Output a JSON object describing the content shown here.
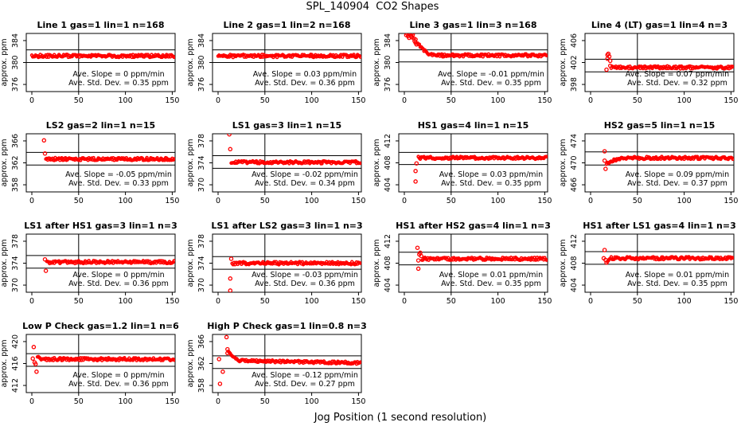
{
  "figure": {
    "title": "SPL_140904  CO2 Shapes",
    "x_axis_label": "Jog Position (1 second resolution)",
    "y_axis_label": "approx. ppm"
  },
  "colors": {
    "point": "#ff0000",
    "axis": "#000000",
    "background": "#ffffff"
  },
  "chart_data": [
    {
      "type": "scatter",
      "name": "line-1",
      "title": "Line 1 gas=1 lin=1 n=168",
      "ylabel": "approx. ppm",
      "yticks": [
        376,
        380,
        384
      ],
      "xticks": [
        0,
        50,
        100,
        150
      ],
      "vline_x": 50,
      "hlines": [
        382.3,
        380.0
      ],
      "annotation": [
        "Ave. Slope =  0  ppm/min",
        "Ave. Std. Dev. =  0.35  ppm"
      ],
      "slope_ppm_per_min": 0,
      "std_dev_ppm": 0.35,
      "series": {
        "baseline": 381.2,
        "noise": 0.26,
        "x_start": 0,
        "x_end": 152,
        "outliers": []
      }
    },
    {
      "type": "scatter",
      "name": "line-2",
      "title": "Line 2 gas=1 lin=2 n=168",
      "ylabel": "approx. ppm",
      "yticks": [
        376,
        380,
        384
      ],
      "xticks": [
        0,
        50,
        100,
        150
      ],
      "vline_x": 50,
      "hlines": [
        382.3,
        380.0
      ],
      "annotation": [
        "Ave. Slope =  0.03  ppm/min",
        "Ave. Std. Dev. =  0.36  ppm"
      ],
      "slope_ppm_per_min": 0.03,
      "std_dev_ppm": 0.36,
      "series": {
        "baseline": 381.2,
        "noise": 0.27,
        "x_start": 0,
        "x_end": 152,
        "outliers": []
      }
    },
    {
      "type": "scatter",
      "name": "line-3",
      "title": "Line 3 gas=1 lin=3 n=168",
      "ylabel": "approx. ppm",
      "yticks": [
        376,
        380,
        384
      ],
      "xticks": [
        0,
        50,
        100,
        150
      ],
      "vline_x": 50,
      "hlines": [
        382.3,
        380.1
      ],
      "annotation": [
        "Ave. Slope =  -0.01  ppm/min",
        "Ave. Std. Dev. =  0.35  ppm"
      ],
      "slope_ppm_per_min": -0.01,
      "std_dev_ppm": 0.35,
      "series": {
        "baseline": 381.3,
        "noise": 0.25,
        "x_start": 34,
        "x_end": 152,
        "ramp": {
          "x0": 14,
          "x1": 33,
          "from": 383.6
        },
        "outliers": [
          [
            2,
            385.0
          ],
          [
            3,
            385.3
          ],
          [
            4,
            384.8
          ],
          [
            5,
            385.2
          ],
          [
            5,
            384.5
          ],
          [
            6,
            385.3
          ],
          [
            7,
            384.9
          ],
          [
            8,
            385.3
          ],
          [
            8,
            384.6
          ],
          [
            9,
            385.1
          ],
          [
            10,
            384.4
          ],
          [
            11,
            383.9
          ],
          [
            12,
            384.2
          ],
          [
            12,
            383.6
          ],
          [
            13,
            383.3
          ]
        ]
      }
    },
    {
      "type": "scatter",
      "name": "line-4-lt",
      "title": "Line 4 (LT) gas=1 lin=4 n=3",
      "ylabel": "approx. ppm",
      "yticks": [
        398,
        402,
        406
      ],
      "xticks": [
        0,
        50,
        100,
        150
      ],
      "vline_x": 50,
      "hlines": [
        402.6,
        400.3
      ],
      "annotation": [
        "Ave. Slope =  0.07  ppm/min",
        "Ave. Std. Dev. =  0.32  ppm"
      ],
      "slope_ppm_per_min": 0.07,
      "std_dev_ppm": 0.32,
      "series": {
        "baseline": 401.1,
        "noise": 0.26,
        "x_start": 22,
        "x_end": 152,
        "outliers": [
          [
            17,
            400.7
          ],
          [
            18,
            402.7
          ],
          [
            18,
            403.4
          ],
          [
            19,
            403.6
          ],
          [
            20,
            403.1
          ],
          [
            21,
            402.3
          ],
          [
            21,
            401.4
          ]
        ]
      }
    },
    {
      "type": "scatter",
      "name": "ls2",
      "title": "LS2 gas=2 lin=1 n=15",
      "ylabel": "approx. ppm",
      "yticks": [
        358,
        362,
        366
      ],
      "xticks": [
        0,
        50,
        100,
        150
      ],
      "vline_x": 50,
      "hlines": [
        363.9,
        361.6
      ],
      "annotation": [
        "Ave. Slope =  -0.05  ppm/min",
        "Ave. Std. Dev. =  0.33  ppm"
      ],
      "slope_ppm_per_min": -0.05,
      "std_dev_ppm": 0.33,
      "series": {
        "baseline": 362.7,
        "noise": 0.25,
        "x_start": 15,
        "x_end": 152,
        "outliers": [
          [
            13,
            366.1
          ],
          [
            14,
            363.7
          ]
        ]
      }
    },
    {
      "type": "scatter",
      "name": "ls1",
      "title": "LS1 gas=3 lin=1 n=15",
      "ylabel": "approx. ppm",
      "yticks": [
        370,
        374,
        378
      ],
      "xticks": [
        0,
        50,
        100,
        150
      ],
      "vline_x": 50,
      "hlines": [
        375.3,
        373.0
      ],
      "annotation": [
        "Ave. Slope =  -0.02  ppm/min",
        "Ave. Std. Dev. =  0.34  ppm"
      ],
      "slope_ppm_per_min": -0.02,
      "std_dev_ppm": 0.34,
      "series": {
        "baseline": 374.1,
        "noise": 0.25,
        "x_start": 14,
        "x_end": 152,
        "outliers": [
          [
            12,
            379.2
          ],
          [
            13,
            376.5
          ]
        ]
      }
    },
    {
      "type": "scatter",
      "name": "hs1",
      "title": "HS1 gas=4 lin=1 n=15",
      "ylabel": "approx. ppm",
      "yticks": [
        404,
        408,
        412
      ],
      "xticks": [
        0,
        50,
        100,
        150
      ],
      "vline_x": 50,
      "hlines": [
        409.9,
        407.7
      ],
      "annotation": [
        "Ave. Slope =  0.03  ppm/min",
        "Ave. Std. Dev. =  0.35  ppm"
      ],
      "slope_ppm_per_min": 0.03,
      "std_dev_ppm": 0.35,
      "series": {
        "baseline": 408.9,
        "noise": 0.25,
        "x_start": 15,
        "x_end": 152,
        "outliers": [
          [
            12,
            404.6
          ],
          [
            12,
            406.5
          ],
          [
            13,
            407.9
          ]
        ]
      }
    },
    {
      "type": "scatter",
      "name": "hs2",
      "title": "HS2 gas=5 lin=1 n=15",
      "ylabel": "approx. ppm",
      "yticks": [
        466,
        470,
        474
      ],
      "xticks": [
        0,
        50,
        100,
        150
      ],
      "vline_x": 50,
      "hlines": [
        472.0,
        469.6
      ],
      "annotation": [
        "Ave. Slope =  0.09  ppm/min",
        "Ave. Std. Dev. =  0.37  ppm"
      ],
      "slope_ppm_per_min": 0.09,
      "std_dev_ppm": 0.37,
      "series": {
        "baseline": 470.9,
        "noise": 0.26,
        "x_start": 41,
        "x_end": 152,
        "ramp": {
          "x0": 17,
          "x1": 40,
          "from": 469.9
        },
        "outliers": [
          [
            15,
            472.1
          ],
          [
            15,
            470.4
          ],
          [
            16,
            468.9
          ]
        ]
      }
    },
    {
      "type": "scatter",
      "name": "ls1-after-hs1",
      "title": "LS1 after HS1 gas=3 lin=1 n=3",
      "ylabel": "approx. ppm",
      "yticks": [
        370,
        374,
        378
      ],
      "xticks": [
        0,
        50,
        100,
        150
      ],
      "vline_x": 50,
      "hlines": [
        375.4,
        373.1
      ],
      "annotation": [
        "Ave. Slope =  0  ppm/min",
        "Ave. Std. Dev. =  0.36  ppm"
      ],
      "slope_ppm_per_min": 0,
      "std_dev_ppm": 0.36,
      "series": {
        "baseline": 374.2,
        "noise": 0.27,
        "x_start": 16,
        "x_end": 152,
        "outliers": [
          [
            14,
            374.7
          ],
          [
            15,
            372.6
          ]
        ]
      }
    },
    {
      "type": "scatter",
      "name": "ls1-after-ls2",
      "title": "LS1 after LS2 gas=3 lin=1 n=3",
      "ylabel": "approx. ppm",
      "yticks": [
        370,
        374,
        378
      ],
      "xticks": [
        0,
        50,
        100,
        150
      ],
      "vline_x": 50,
      "hlines": [
        375.2,
        372.9
      ],
      "annotation": [
        "Ave. Slope =  -0.03  ppm/min",
        "Ave. Std. Dev. =  0.36  ppm"
      ],
      "slope_ppm_per_min": -0.03,
      "std_dev_ppm": 0.36,
      "series": {
        "baseline": 374.0,
        "noise": 0.27,
        "x_start": 15,
        "x_end": 152,
        "outliers": [
          [
            13,
            371.2
          ],
          [
            13,
            369.0
          ],
          [
            14,
            374.8
          ]
        ]
      }
    },
    {
      "type": "scatter",
      "name": "hs1-after-hs2",
      "title": "HS1 after HS2 gas=4 lin=1 n=3",
      "ylabel": "approx. ppm",
      "yticks": [
        404,
        408,
        412
      ],
      "xticks": [
        0,
        50,
        100,
        150
      ],
      "vline_x": 50,
      "hlines": [
        410.0,
        407.7
      ],
      "annotation": [
        "Ave. Slope =  0.01  ppm/min",
        "Ave. Std. Dev. =  0.35  ppm"
      ],
      "slope_ppm_per_min": 0.01,
      "std_dev_ppm": 0.35,
      "series": {
        "baseline": 408.8,
        "noise": 0.26,
        "x_start": 19,
        "x_end": 152,
        "outliers": [
          [
            14,
            410.8
          ],
          [
            15,
            408.5
          ],
          [
            15,
            407.0
          ],
          [
            16,
            409.6
          ],
          [
            17,
            409.9
          ],
          [
            18,
            409.3
          ]
        ]
      }
    },
    {
      "type": "scatter",
      "name": "hs1-after-ls1",
      "title": "HS1 after LS1 gas=4 lin=1 n=3",
      "ylabel": "approx. ppm",
      "yticks": [
        404,
        408,
        412
      ],
      "xticks": [
        0,
        50,
        100,
        150
      ],
      "vline_x": 50,
      "hlines": [
        410.1,
        407.8
      ],
      "annotation": [
        "Ave. Slope =  0.01  ppm/min",
        "Ave. Std. Dev. =  0.35  ppm"
      ],
      "slope_ppm_per_min": 0.01,
      "std_dev_ppm": 0.35,
      "series": {
        "baseline": 408.9,
        "noise": 0.26,
        "x_start": 22,
        "x_end": 152,
        "ramp": {
          "x0": 18,
          "x1": 21,
          "from": 408.3
        },
        "outliers": [
          [
            14,
            408.9
          ],
          [
            15,
            410.4
          ],
          [
            16,
            408.6
          ],
          [
            17,
            408.1
          ]
        ]
      }
    },
    {
      "type": "scatter",
      "name": "low-p-check",
      "title": "Low P Check gas=1.2 lin=1 n=6",
      "ylabel": "approx. ppm",
      "yticks": [
        412,
        416,
        420
      ],
      "xticks": [
        0,
        50,
        100,
        150
      ],
      "vline_x": 50,
      "hlines": [
        417.8,
        415.5
      ],
      "annotation": [
        "Ave. Slope =  0  ppm/min",
        "Ave. Std. Dev. =  0.36  ppm"
      ],
      "slope_ppm_per_min": 0,
      "std_dev_ppm": 0.36,
      "series": {
        "baseline": 416.8,
        "noise": 0.26,
        "x_start": 13,
        "x_end": 152,
        "ramp": {
          "x0": 6,
          "x1": 12,
          "from": 417.2
        },
        "outliers": [
          [
            1,
            416.9
          ],
          [
            2,
            419.0
          ],
          [
            3,
            416.2
          ],
          [
            4,
            415.9
          ],
          [
            5,
            414.5
          ]
        ]
      }
    },
    {
      "type": "scatter",
      "name": "high-p-check",
      "title": "High P Check gas=1 lin=0.8 n=3",
      "ylabel": "approx. ppm",
      "yticks": [
        358,
        362,
        366
      ],
      "xticks": [
        0,
        50,
        100,
        150
      ],
      "vline_x": 50,
      "hlines": [
        363.4,
        361.1
      ],
      "annotation": [
        "Ave. Slope =  -0.12  ppm/min",
        "Ave. Std. Dev. =  0.27  ppm"
      ],
      "slope_ppm_per_min": -0.12,
      "std_dev_ppm": 0.27,
      "series": {
        "baseline": 362.5,
        "noise": 0.22,
        "drift": -0.4,
        "x_start": 26,
        "x_end": 152,
        "ramp": {
          "x0": 11,
          "x1": 25,
          "from": 364.2
        },
        "outliers": [
          [
            1,
            362.8
          ],
          [
            2,
            358.3
          ],
          [
            5,
            360.5
          ],
          [
            9,
            366.8
          ],
          [
            10,
            364.6
          ],
          [
            10,
            363.9
          ]
        ]
      }
    }
  ]
}
